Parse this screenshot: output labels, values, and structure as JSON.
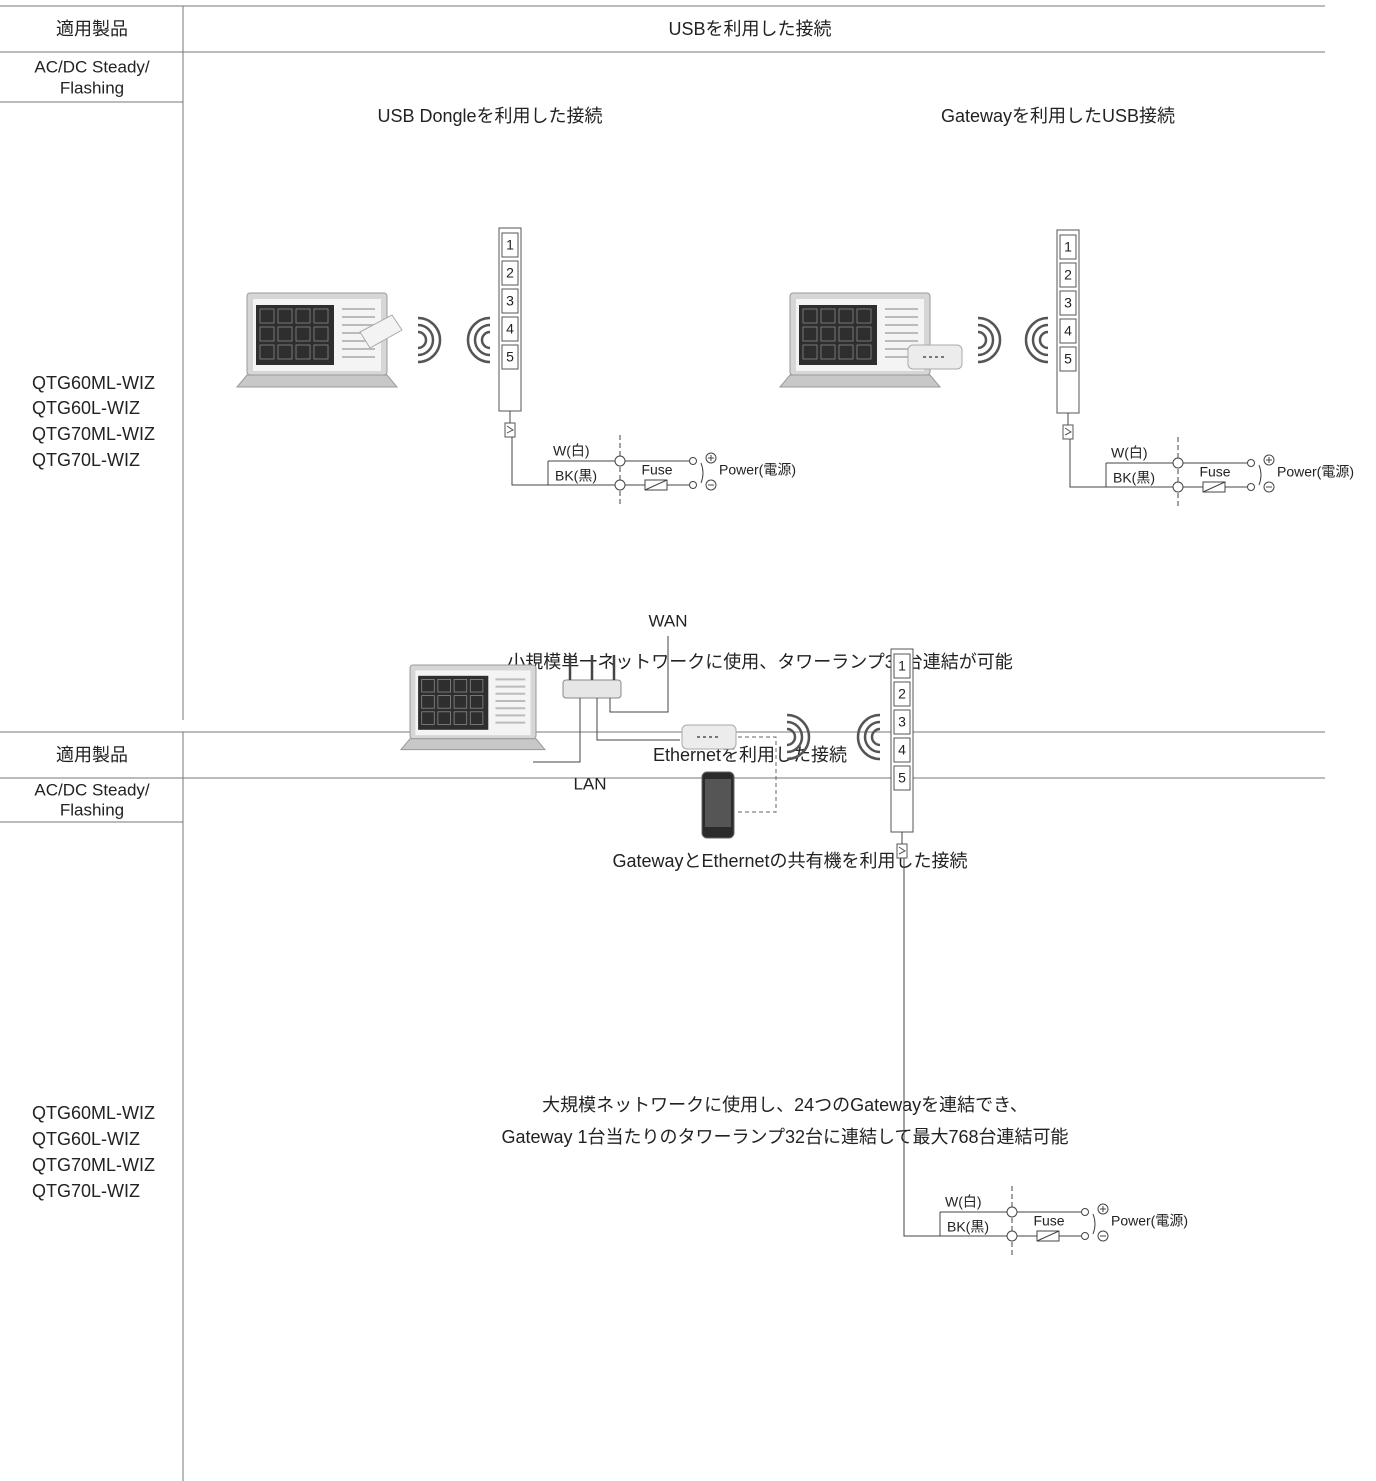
{
  "sections": [
    {
      "header": {
        "product_label": "適用製品",
        "title": "USBを利用した接続"
      },
      "series_label": [
        "AC/DC Steady/",
        "Flashing"
      ],
      "products": [
        "QTG60ML-WIZ",
        "QTG60L-WIZ",
        "QTG70ML-WIZ",
        "QTG70L-WIZ"
      ],
      "diagrams": [
        {
          "title": "USB Dongleを利用した接続",
          "lamp_tiers": [
            1,
            2,
            3,
            4,
            5
          ],
          "wiring": {
            "white": "W(白)",
            "black": "BK(黒)",
            "fuse": "Fuse",
            "power": "Power(電源)"
          }
        },
        {
          "title": "Gatewayを利用したUSB接続",
          "lamp_tiers": [
            1,
            2,
            3,
            4,
            5
          ],
          "wiring": {
            "white": "W(白)",
            "black": "BK(黒)",
            "fuse": "Fuse",
            "power": "Power(電源)"
          }
        }
      ],
      "note": [
        "小規模単一ネットワークに使用、タワーランプ32台連結が可能"
      ]
    },
    {
      "header": {
        "product_label": "適用製品",
        "title": "Ethernetを利用した接続"
      },
      "series_label": [
        "AC/DC Steady/",
        "Flashing"
      ],
      "products": [
        "QTG60ML-WIZ",
        "QTG60L-WIZ",
        "QTG70ML-WIZ",
        "QTG70L-WIZ"
      ],
      "diagrams": [
        {
          "title": "GatewayとEthernetの共有機を利用した接続",
          "wan": "WAN",
          "lan": "LAN",
          "lamp_tiers": [
            1,
            2,
            3,
            4,
            5
          ],
          "wiring": {
            "white": "W(白)",
            "black": "BK(黒)",
            "fuse": "Fuse",
            "power": "Power(電源)"
          }
        }
      ],
      "note": [
        "大規模ネットワークに使用し、24つのGatewayを連結でき、",
        "Gateway 1台当たりのタワーランプ32台に連結して最大768台連結可能"
      ]
    }
  ]
}
